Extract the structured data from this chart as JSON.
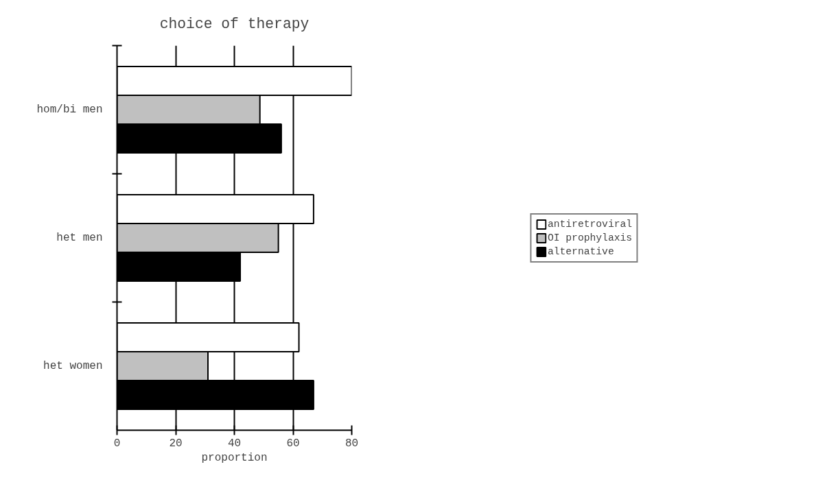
{
  "chart_data": {
    "type": "bar",
    "orientation": "horizontal",
    "title": "choice of therapy",
    "xlabel": "proportion",
    "categories": [
      "hom/bi men",
      "het men",
      "het women"
    ],
    "series": [
      {
        "name": "antiretroviral",
        "color": "#ffffff",
        "values": [
          80,
          67,
          62
        ]
      },
      {
        "name": "OI prophylaxis",
        "color": "#c0c0c0",
        "values": [
          48.7,
          55,
          31
        ]
      },
      {
        "name": "alternative",
        "color": "#000000",
        "values": [
          56,
          42,
          67
        ]
      }
    ],
    "xlim": [
      0,
      80
    ],
    "xticks": [
      0,
      20,
      40,
      60,
      80
    ],
    "grid": "x",
    "legend": "right"
  }
}
